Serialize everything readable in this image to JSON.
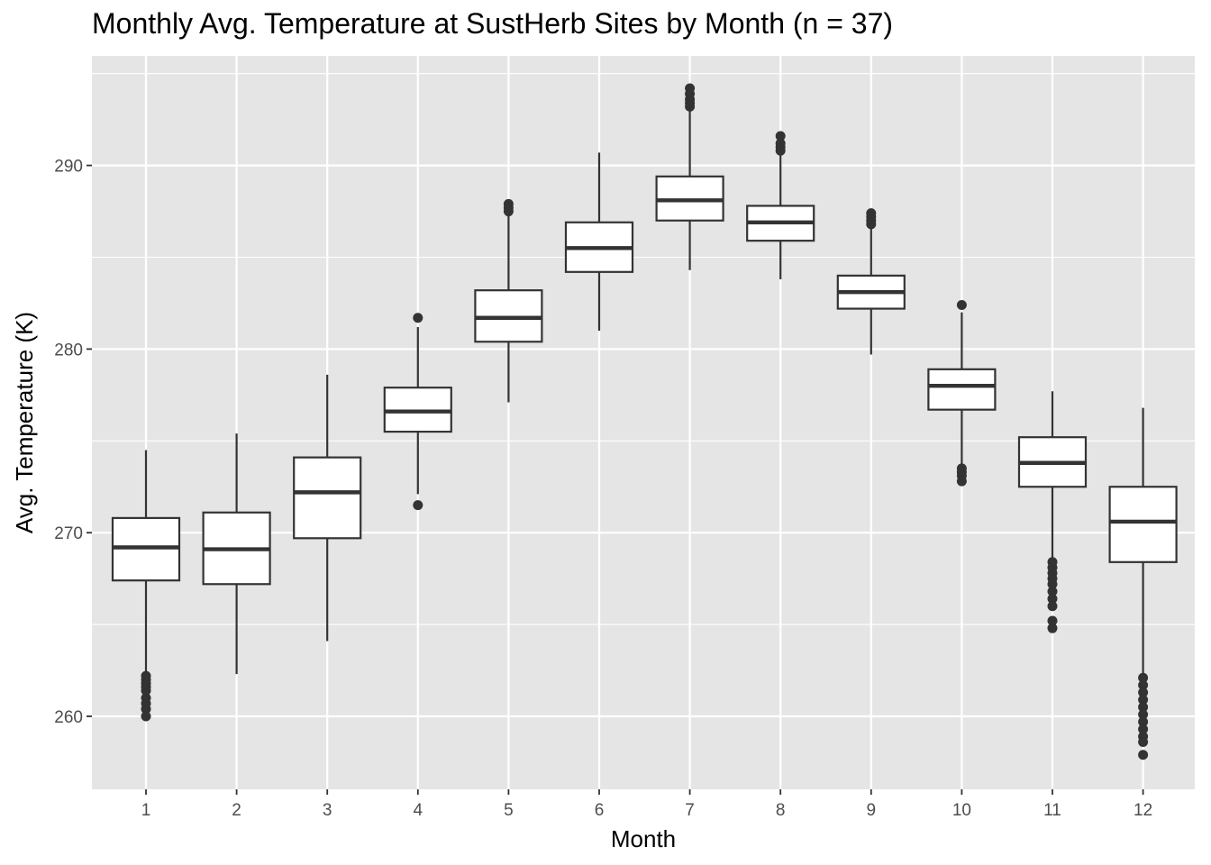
{
  "chart_data": {
    "type": "boxplot",
    "title": "Monthly Avg. Temperature at SustHerb Sites by Month (n = 37)",
    "xlabel": "Month",
    "ylabel": "Avg. Temperature (K)",
    "ylim": [
      256,
      295
    ],
    "yticks": [
      260,
      270,
      280,
      290
    ],
    "grid": true,
    "panel_background": "#e5e5e5",
    "grid_color": "#ffffff",
    "box_fill": "#ffffff",
    "line_color": "#333333",
    "categories": [
      "1",
      "2",
      "3",
      "4",
      "5",
      "6",
      "7",
      "8",
      "9",
      "10",
      "11",
      "12"
    ],
    "boxes": [
      {
        "month": "1",
        "whisker_low": 262.3,
        "q1": 267.4,
        "median": 269.2,
        "q3": 270.8,
        "whisker_high": 274.5,
        "outliers": [
          262.2,
          262.0,
          261.8,
          261.6,
          261.4,
          261.0,
          260.7,
          260.4,
          260.0
        ]
      },
      {
        "month": "2",
        "whisker_low": 262.3,
        "q1": 267.2,
        "median": 269.1,
        "q3": 271.1,
        "whisker_high": 275.4,
        "outliers": []
      },
      {
        "month": "3",
        "whisker_low": 264.1,
        "q1": 269.7,
        "median": 272.2,
        "q3": 274.1,
        "whisker_high": 278.6,
        "outliers": []
      },
      {
        "month": "4",
        "whisker_low": 272.1,
        "q1": 275.5,
        "median": 276.6,
        "q3": 277.9,
        "whisker_high": 281.2,
        "outliers": [
          281.7,
          271.5
        ]
      },
      {
        "month": "5",
        "whisker_low": 277.1,
        "q1": 280.4,
        "median": 281.7,
        "q3": 283.2,
        "whisker_high": 287.3,
        "outliers": [
          287.9,
          287.7,
          287.5
        ]
      },
      {
        "month": "6",
        "whisker_low": 281.0,
        "q1": 284.2,
        "median": 285.5,
        "q3": 286.9,
        "whisker_high": 290.7,
        "outliers": []
      },
      {
        "month": "7",
        "whisker_low": 284.3,
        "q1": 287.0,
        "median": 288.1,
        "q3": 289.4,
        "whisker_high": 293.0,
        "outliers": [
          294.2,
          293.9,
          293.6,
          293.4,
          293.2
        ]
      },
      {
        "month": "8",
        "whisker_low": 283.8,
        "q1": 285.9,
        "median": 286.9,
        "q3": 287.8,
        "whisker_high": 290.6,
        "outliers": [
          291.6,
          291.2,
          291.0,
          290.8
        ]
      },
      {
        "month": "9",
        "whisker_low": 279.7,
        "q1": 282.2,
        "median": 283.1,
        "q3": 284.0,
        "whisker_high": 286.6,
        "outliers": [
          287.4,
          287.2,
          287.0,
          286.8
        ]
      },
      {
        "month": "10",
        "whisker_low": 273.7,
        "q1": 276.7,
        "median": 278.0,
        "q3": 278.9,
        "whisker_high": 282.0,
        "outliers": [
          282.4,
          273.5,
          273.3,
          273.1,
          272.8
        ]
      },
      {
        "month": "11",
        "whisker_low": 268.6,
        "q1": 272.5,
        "median": 273.8,
        "q3": 275.2,
        "whisker_high": 277.7,
        "outliers": [
          268.4,
          268.1,
          267.8,
          267.5,
          267.2,
          266.8,
          266.4,
          266.0,
          265.2,
          264.8
        ]
      },
      {
        "month": "12",
        "whisker_low": 262.3,
        "q1": 268.4,
        "median": 270.6,
        "q3": 272.5,
        "whisker_high": 276.8,
        "outliers": [
          262.1,
          261.7,
          261.3,
          260.9,
          260.5,
          260.1,
          259.7,
          259.3,
          258.9,
          258.6,
          257.9
        ]
      }
    ]
  }
}
